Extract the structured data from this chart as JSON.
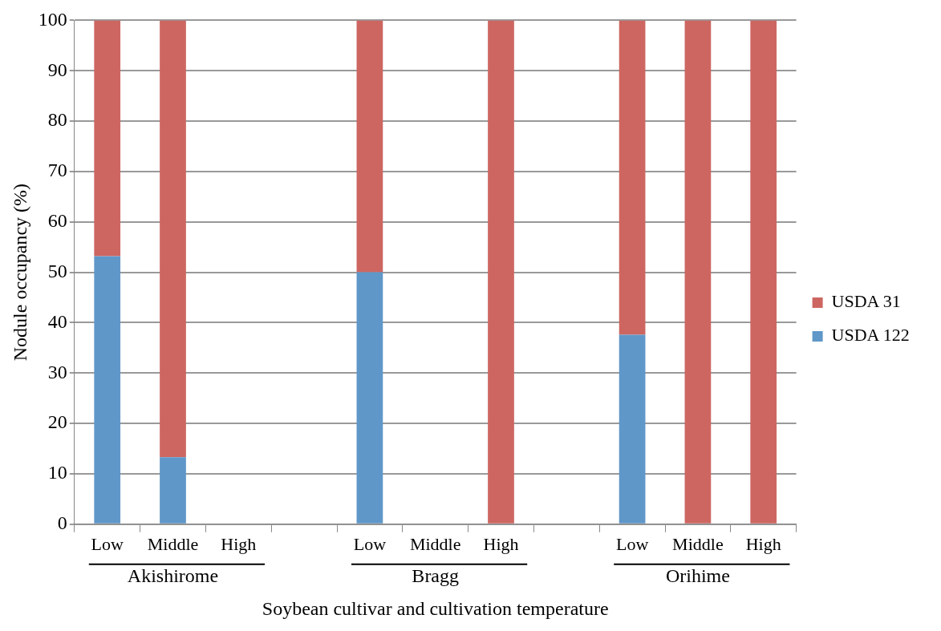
{
  "chart_data": {
    "type": "bar",
    "stacked": true,
    "xlabel": "Soybean cultivar and cultivation temperature",
    "ylabel": "Nodule occupancy (%)",
    "categories": [
      "Low",
      "Middle",
      "High",
      null,
      "Low",
      "Middle",
      "High",
      null,
      "Low",
      "Middle",
      "High"
    ],
    "series": [
      {
        "name": "USDA 122",
        "color": "#6097c9",
        "values": [
          53.2,
          13.3,
          null,
          null,
          50,
          null,
          0,
          null,
          37.6,
          0,
          0
        ]
      },
      {
        "name": "USDA 31",
        "color": "#cd6661",
        "values": [
          46.8,
          86.7,
          null,
          null,
          50,
          null,
          100,
          null,
          62.4,
          100,
          100
        ]
      }
    ],
    "ylim": [
      0,
      100
    ],
    "yticks": [
      0,
      10,
      20,
      30,
      40,
      50,
      60,
      70,
      80,
      90,
      100
    ],
    "grid": "y",
    "legend": "right",
    "annotations": [
      "Akishirome",
      "Bragg",
      "Orihime"
    ]
  }
}
